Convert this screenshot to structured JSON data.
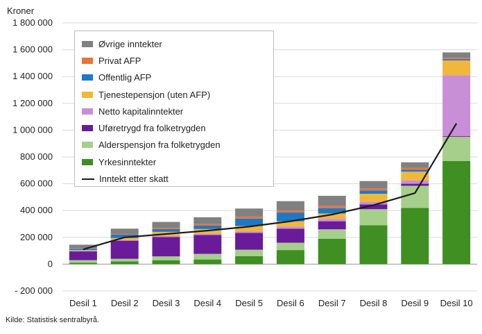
{
  "chart_data": {
    "type": "bar",
    "stacked": true,
    "ylabel": "Kroner",
    "source": "Kilde: Statistisk sentralbyrå.",
    "ylim": [
      -200000,
      1800000
    ],
    "yticks": [
      -200000,
      0,
      200000,
      400000,
      600000,
      800000,
      1000000,
      1200000,
      1400000,
      1600000,
      1800000
    ],
    "ytick_labels": [
      "- 200 000",
      "0",
      "200 000",
      "400 000",
      "600 000",
      "800 000",
      "1 000 000",
      "1 200 000",
      "1 400 000",
      "1 600 000",
      "1 800 000"
    ],
    "grid": true,
    "legend_position": "top-left",
    "categories": [
      "Desil 1",
      "Desil 2",
      "Desil 3",
      "Desil 4",
      "Desil 5",
      "Desil 6",
      "Desil 7",
      "Desil 8",
      "Desil 9",
      "Desil 10"
    ],
    "series": [
      {
        "name": "Yrkesinntekter",
        "color": "#3f8f22",
        "values": [
          10000,
          20000,
          28000,
          35000,
          60000,
          105000,
          190000,
          290000,
          420000,
          770000
        ]
      },
      {
        "name": "Alderspensjon fra folketrygden",
        "color": "#a5cf8b",
        "values": [
          20000,
          20000,
          30000,
          42000,
          48000,
          55000,
          70000,
          120000,
          165000,
          180000
        ]
      },
      {
        "name": "Uføretrygd fra folketrygden",
        "color": "#6a1b9a",
        "values": [
          65000,
          135000,
          145000,
          140000,
          125000,
          105000,
          60000,
          35000,
          15000,
          5000
        ]
      },
      {
        "name": "Netto kapitalinntekter",
        "color": "#c88fd6",
        "values": [
          5000,
          5000,
          8000,
          10000,
          12000,
          15000,
          18000,
          20000,
          25000,
          455000
        ]
      },
      {
        "name": "Tjenestepensjon (uten AFP)",
        "color": "#f0b73a",
        "values": [
          5000,
          15000,
          30000,
          35000,
          40000,
          40000,
          40000,
          60000,
          65000,
          110000
        ]
      },
      {
        "name": "Offentlig AFP",
        "color": "#1e78c8",
        "values": [
          10000,
          25000,
          20000,
          25000,
          55000,
          65000,
          40000,
          25000,
          15000,
          10000
        ]
      },
      {
        "name": "Privat AFP",
        "color": "#e8743b",
        "values": [
          2000,
          5000,
          10000,
          12000,
          15000,
          15000,
          15000,
          15000,
          15000,
          10000
        ]
      },
      {
        "name": "Øvrige inntekter",
        "color": "#808080",
        "values": [
          28000,
          40000,
          44000,
          51000,
          60000,
          70000,
          77000,
          55000,
          40000,
          40000
        ]
      }
    ],
    "line": {
      "name": "Inntekt etter skatt",
      "color": "#1a1a1a",
      "values": [
        110000,
        200000,
        225000,
        250000,
        280000,
        320000,
        370000,
        440000,
        530000,
        1050000
      ]
    }
  },
  "legend_order": [
    "Øvrige inntekter",
    "Privat AFP",
    "Offentlig AFP",
    "Tjenestepensjon (uten AFP)",
    "Netto kapitalinntekter",
    "Uføretrygd fra folketrygden",
    "Alderspensjon fra folketrygden",
    "Yrkesinntekter",
    "Inntekt etter skatt"
  ]
}
